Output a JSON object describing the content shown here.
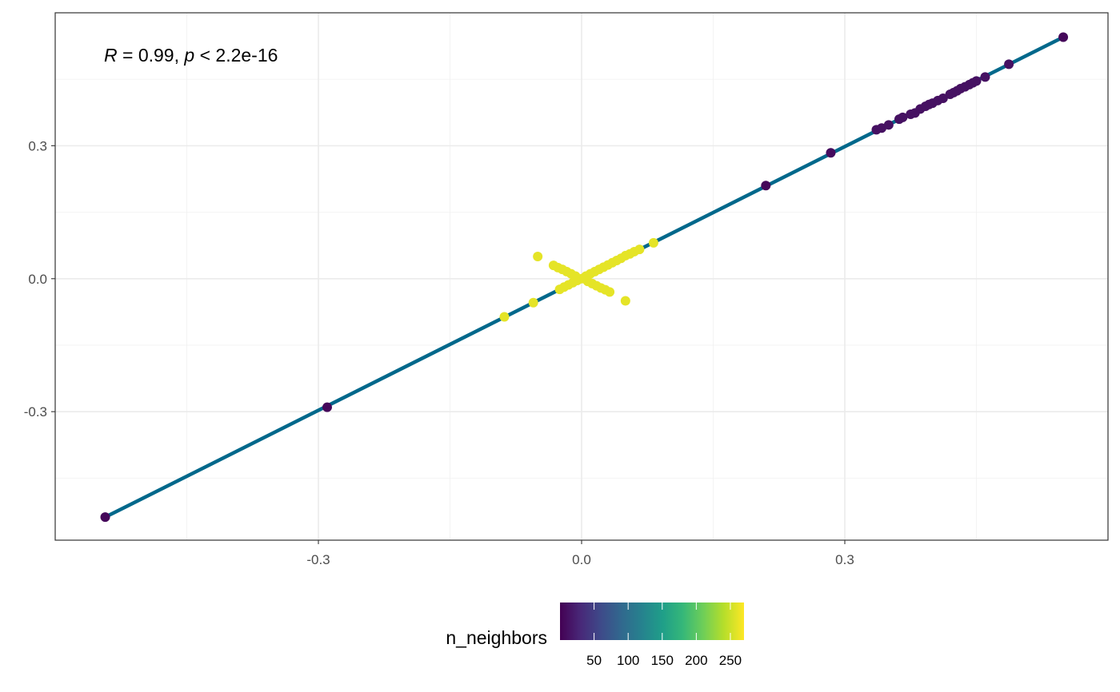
{
  "chart_data": {
    "type": "scatter",
    "title": "",
    "xlabel": "",
    "ylabel": "",
    "xlim": [
      -0.6,
      0.6
    ],
    "ylim": [
      -0.59,
      0.6
    ],
    "x_ticks": [
      -0.3,
      0.0,
      0.3
    ],
    "x_tick_labels": [
      "-0.3",
      "0.0",
      "0.3"
    ],
    "y_ticks": [
      -0.3,
      0.0,
      0.3
    ],
    "y_tick_labels": [
      "-0.3",
      "0.0",
      "0.3"
    ],
    "grid": true,
    "annotation": {
      "r_symbol": "R",
      "r_text": " = 0.99, ",
      "p_symbol": "p",
      "p_text": " < 2.2e-16"
    },
    "regression_line": {
      "x": [
        -0.543,
        0.549
      ],
      "y": [
        -0.538,
        0.545
      ],
      "color": "#00688b"
    },
    "color_scale": {
      "title": "n_neighbors",
      "palette": "viridis",
      "range": [
        0,
        270
      ],
      "ticks": [
        50,
        100,
        150,
        200,
        250
      ],
      "tick_labels": [
        "50",
        "100",
        "150",
        "200",
        "250"
      ],
      "stops": [
        "#440154",
        "#482878",
        "#3e4a89",
        "#31688e",
        "#26828e",
        "#1f9e89",
        "#35b779",
        "#6ece58",
        "#b5de2b",
        "#fde725"
      ],
      "position": "bottom"
    },
    "points": [
      {
        "x": -0.543,
        "y": -0.538,
        "n": 5
      },
      {
        "x": -0.29,
        "y": -0.29,
        "n": 5
      },
      {
        "x": 0.21,
        "y": 0.21,
        "n": 5
      },
      {
        "x": 0.284,
        "y": 0.284,
        "n": 8
      },
      {
        "x": 0.336,
        "y": 0.336,
        "n": 12
      },
      {
        "x": 0.342,
        "y": 0.34,
        "n": 12
      },
      {
        "x": 0.35,
        "y": 0.347,
        "n": 12
      },
      {
        "x": 0.362,
        "y": 0.36,
        "n": 12
      },
      {
        "x": 0.366,
        "y": 0.364,
        "n": 12
      },
      {
        "x": 0.375,
        "y": 0.371,
        "n": 12
      },
      {
        "x": 0.38,
        "y": 0.374,
        "n": 12
      },
      {
        "x": 0.386,
        "y": 0.383,
        "n": 12
      },
      {
        "x": 0.392,
        "y": 0.389,
        "n": 12
      },
      {
        "x": 0.396,
        "y": 0.393,
        "n": 12
      },
      {
        "x": 0.4,
        "y": 0.396,
        "n": 12
      },
      {
        "x": 0.406,
        "y": 0.402,
        "n": 12
      },
      {
        "x": 0.412,
        "y": 0.407,
        "n": 12
      },
      {
        "x": 0.42,
        "y": 0.416,
        "n": 12
      },
      {
        "x": 0.424,
        "y": 0.42,
        "n": 12
      },
      {
        "x": 0.428,
        "y": 0.424,
        "n": 12
      },
      {
        "x": 0.432,
        "y": 0.429,
        "n": 12
      },
      {
        "x": 0.437,
        "y": 0.433,
        "n": 12
      },
      {
        "x": 0.442,
        "y": 0.438,
        "n": 12
      },
      {
        "x": 0.446,
        "y": 0.442,
        "n": 12
      },
      {
        "x": 0.45,
        "y": 0.446,
        "n": 12
      },
      {
        "x": 0.46,
        "y": 0.455,
        "n": 12
      },
      {
        "x": 0.487,
        "y": 0.484,
        "n": 12
      },
      {
        "x": 0.549,
        "y": 0.545,
        "n": 5
      },
      {
        "x": -0.088,
        "y": -0.086,
        "n": 260
      },
      {
        "x": -0.055,
        "y": -0.054,
        "n": 260
      },
      {
        "x": -0.05,
        "y": 0.05,
        "n": 260
      },
      {
        "x": 0.05,
        "y": -0.05,
        "n": 260
      },
      {
        "x": 0.082,
        "y": 0.081,
        "n": 260
      },
      {
        "x": 0.066,
        "y": 0.066,
        "n": 260
      },
      {
        "x": 0.06,
        "y": 0.061,
        "n": 260
      },
      {
        "x": 0.055,
        "y": 0.056,
        "n": 260
      },
      {
        "x": 0.05,
        "y": 0.052,
        "n": 260
      },
      {
        "x": 0.045,
        "y": 0.046,
        "n": 260
      },
      {
        "x": 0.04,
        "y": 0.041,
        "n": 260
      },
      {
        "x": 0.035,
        "y": 0.036,
        "n": 260
      },
      {
        "x": 0.03,
        "y": 0.031,
        "n": 260
      },
      {
        "x": 0.025,
        "y": 0.026,
        "n": 260
      },
      {
        "x": 0.02,
        "y": 0.021,
        "n": 260
      },
      {
        "x": 0.015,
        "y": 0.016,
        "n": 260
      },
      {
        "x": 0.01,
        "y": 0.011,
        "n": 260
      },
      {
        "x": 0.005,
        "y": 0.006,
        "n": 260
      },
      {
        "x": 0.0,
        "y": 0.0,
        "n": 260
      },
      {
        "x": -0.005,
        "y": -0.004,
        "n": 260
      },
      {
        "x": -0.01,
        "y": -0.009,
        "n": 260
      },
      {
        "x": -0.015,
        "y": -0.014,
        "n": 260
      },
      {
        "x": -0.02,
        "y": -0.019,
        "n": 260
      },
      {
        "x": -0.025,
        "y": -0.024,
        "n": 260
      },
      {
        "x": -0.032,
        "y": 0.03,
        "n": 260
      },
      {
        "x": -0.027,
        "y": 0.025,
        "n": 260
      },
      {
        "x": -0.022,
        "y": 0.021,
        "n": 260
      },
      {
        "x": -0.017,
        "y": 0.016,
        "n": 260
      },
      {
        "x": -0.012,
        "y": 0.011,
        "n": 260
      },
      {
        "x": -0.007,
        "y": 0.006,
        "n": 260
      },
      {
        "x": 0.007,
        "y": -0.006,
        "n": 260
      },
      {
        "x": 0.012,
        "y": -0.011,
        "n": 260
      },
      {
        "x": 0.017,
        "y": -0.016,
        "n": 260
      },
      {
        "x": 0.022,
        "y": -0.021,
        "n": 260
      },
      {
        "x": 0.027,
        "y": -0.025,
        "n": 260
      },
      {
        "x": 0.032,
        "y": -0.03,
        "n": 260
      }
    ]
  }
}
